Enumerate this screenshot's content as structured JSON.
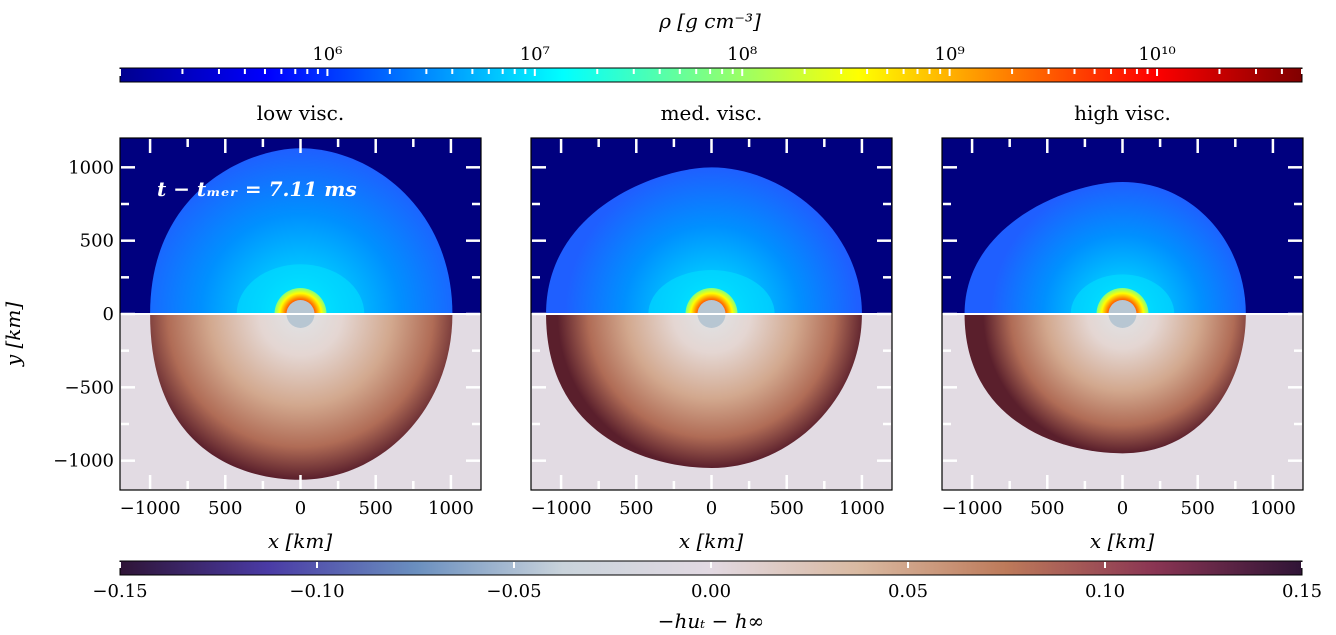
{
  "chart_data": {
    "type": "heatmap",
    "density_colorbar": {
      "label": "ρ [g cm⁻³]",
      "scale": "log",
      "range": [
        100000.0,
        50000000000.0
      ],
      "tick_labels": [
        {
          "value": 1000000.0,
          "label": "10⁶"
        },
        {
          "value": 10000000.0,
          "label": "10⁷"
        },
        {
          "value": 100000000.0,
          "label": "10⁸"
        },
        {
          "value": 1000000000.0,
          "label": "10⁹"
        },
        {
          "value": 10000000000.0,
          "label": "10¹⁰"
        }
      ],
      "colormap": "jet"
    },
    "bernoulli_colorbar": {
      "label": "−huₜ − h∞",
      "range": [
        -0.15,
        0.15
      ],
      "ticks": [
        -0.15,
        -0.1,
        -0.05,
        0.0,
        0.05,
        0.1,
        0.15
      ],
      "tick_labels": [
        "−0.15",
        "−0.10",
        "−0.05",
        "0.00",
        "0.05",
        "0.10",
        "0.15"
      ],
      "colormap": "twilight"
    },
    "panels": [
      {
        "title": "low visc.",
        "annotation": "t − tₘₑᵣ = 7.11 ms",
        "outflow_extent_km": {
          "top": 1130,
          "bottom": -1130,
          "left": -1000,
          "right": 1010
        }
      },
      {
        "title": "med. visc.",
        "annotation": "",
        "outflow_extent_km": {
          "top": 1000,
          "bottom": -1050,
          "left": -1100,
          "right": 1000
        }
      },
      {
        "title": "high visc.",
        "annotation": "",
        "outflow_extent_km": {
          "top": 900,
          "bottom": -950,
          "left": -1050,
          "right": 820
        }
      }
    ],
    "xlabel": "x [km]",
    "ylabel": "y [km]",
    "xlim": [
      -1200,
      1200
    ],
    "ylim": [
      -1200,
      1200
    ],
    "xticks": [
      -1000,
      500,
      0,
      500,
      1000
    ],
    "xtick_labels": [
      "−1000",
      "500",
      "0",
      "500",
      "1000"
    ],
    "yticks": [
      1000,
      500,
      0,
      -500,
      -1000
    ],
    "ytick_labels": [
      "1000",
      "500",
      "0",
      "−500",
      "−1000"
    ]
  },
  "colors": {
    "jet": [
      "#00008f",
      "#0000ff",
      "#0080ff",
      "#00ffff",
      "#80ff80",
      "#ffff00",
      "#ff8000",
      "#ff0000",
      "#800000"
    ],
    "twilight": [
      "#2f1436",
      "#4a3ba5",
      "#6a8fbf",
      "#c9d3db",
      "#e2d9e2",
      "#d9b9a1",
      "#bd7a5a",
      "#8a3553",
      "#2f1436"
    ],
    "top_background": "#00007f",
    "bottom_background": "#e2dbe3",
    "annotation_text": "#ffffff"
  }
}
